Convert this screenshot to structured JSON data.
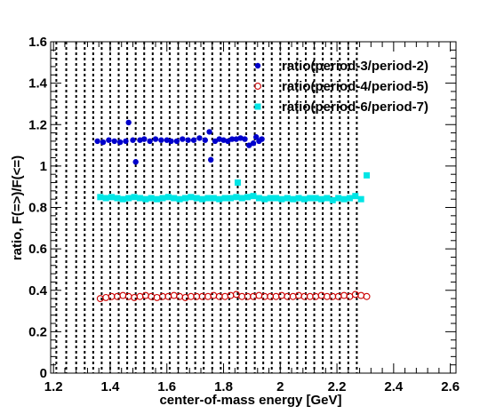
{
  "chart_data": {
    "type": "scatter",
    "title": "",
    "xlabel": "center-of-mass energy [GeV]",
    "ylabel": "ratio, F(=>)/F(<=)",
    "xlim": [
      1.19,
      2.62
    ],
    "ylim": [
      0,
      1.6
    ],
    "xticks": [
      "1.2",
      "1.4",
      "1.6",
      "1.8",
      "2",
      "2.2",
      "2.4",
      "2.6"
    ],
    "yticks": [
      "0",
      "0.2",
      "0.4",
      "0.6",
      "0.8",
      "1",
      "1.2",
      "1.4",
      "1.6"
    ],
    "grid": false,
    "legend_position": "top-right",
    "vertical_lines_x": [
      1.21,
      1.245,
      1.28,
      1.31,
      1.34,
      1.37,
      1.4,
      1.43,
      1.46,
      1.49,
      1.52,
      1.55,
      1.58,
      1.61,
      1.64,
      1.67,
      1.7,
      1.73,
      1.76,
      1.79,
      1.82,
      1.85,
      1.88,
      1.91,
      1.94,
      1.97,
      2.0,
      2.03,
      2.06,
      2.09,
      2.12,
      2.15,
      2.18,
      2.21,
      2.24,
      2.27
    ],
    "series": [
      {
        "name": "ratio(period-3/period-2)",
        "color": "#0000cc",
        "marker": "filled-circle",
        "x": [
          1.355,
          1.375,
          1.395,
          1.415,
          1.435,
          1.455,
          1.465,
          1.48,
          1.49,
          1.505,
          1.52,
          1.54,
          1.56,
          1.58,
          1.6,
          1.615,
          1.635,
          1.655,
          1.675,
          1.695,
          1.715,
          1.735,
          1.75,
          1.755,
          1.77,
          1.785,
          1.8,
          1.815,
          1.83,
          1.845,
          1.86,
          1.875,
          1.89,
          1.905,
          1.915,
          1.925,
          1.935
        ],
        "y": [
          1.12,
          1.115,
          1.125,
          1.12,
          1.115,
          1.12,
          1.21,
          1.125,
          1.02,
          1.125,
          1.13,
          1.12,
          1.13,
          1.125,
          1.125,
          1.12,
          1.12,
          1.13,
          1.125,
          1.125,
          1.135,
          1.125,
          1.165,
          1.03,
          1.12,
          1.13,
          1.125,
          1.12,
          1.13,
          1.13,
          1.135,
          1.13,
          1.1,
          1.11,
          1.14,
          1.12,
          1.13
        ]
      },
      {
        "name": "ratio(period-4/period-5)",
        "color": "#cc0000",
        "marker": "open-circle",
        "x": [
          1.365,
          1.385,
          1.405,
          1.425,
          1.445,
          1.465,
          1.485,
          1.505,
          1.525,
          1.545,
          1.565,
          1.585,
          1.605,
          1.625,
          1.645,
          1.665,
          1.685,
          1.705,
          1.725,
          1.745,
          1.765,
          1.785,
          1.805,
          1.825,
          1.845,
          1.865,
          1.885,
          1.905,
          1.925,
          1.945,
          1.965,
          1.985,
          2.005,
          2.025,
          2.045,
          2.065,
          2.085,
          2.105,
          2.125,
          2.145,
          2.165,
          2.185,
          2.205,
          2.225,
          2.245,
          2.265,
          2.285,
          2.305
        ],
        "y": [
          0.36,
          0.365,
          0.37,
          0.37,
          0.375,
          0.37,
          0.365,
          0.37,
          0.375,
          0.37,
          0.365,
          0.37,
          0.37,
          0.375,
          0.37,
          0.365,
          0.37,
          0.37,
          0.37,
          0.37,
          0.375,
          0.37,
          0.37,
          0.375,
          0.38,
          0.37,
          0.37,
          0.37,
          0.375,
          0.37,
          0.37,
          0.37,
          0.375,
          0.37,
          0.37,
          0.375,
          0.37,
          0.37,
          0.37,
          0.375,
          0.37,
          0.37,
          0.37,
          0.375,
          0.37,
          0.38,
          0.375,
          0.37
        ]
      },
      {
        "name": "ratio(period-6/period-7)",
        "color": "#00e5e5",
        "marker": "filled-square",
        "x": [
          1.365,
          1.385,
          1.405,
          1.425,
          1.445,
          1.465,
          1.485,
          1.505,
          1.525,
          1.545,
          1.565,
          1.585,
          1.605,
          1.625,
          1.645,
          1.665,
          1.685,
          1.705,
          1.725,
          1.745,
          1.765,
          1.785,
          1.805,
          1.825,
          1.845,
          1.85,
          1.865,
          1.885,
          1.905,
          1.925,
          1.945,
          1.965,
          1.985,
          2.005,
          2.025,
          2.045,
          2.065,
          2.085,
          2.105,
          2.125,
          2.145,
          2.165,
          2.185,
          2.205,
          2.225,
          2.245,
          2.265,
          2.285,
          2.305
        ],
        "y": [
          0.85,
          0.845,
          0.85,
          0.845,
          0.84,
          0.845,
          0.85,
          0.845,
          0.84,
          0.845,
          0.84,
          0.845,
          0.85,
          0.845,
          0.84,
          0.845,
          0.85,
          0.845,
          0.84,
          0.845,
          0.845,
          0.84,
          0.845,
          0.845,
          0.85,
          0.92,
          0.845,
          0.85,
          0.855,
          0.845,
          0.84,
          0.845,
          0.845,
          0.84,
          0.845,
          0.84,
          0.845,
          0.84,
          0.845,
          0.845,
          0.84,
          0.845,
          0.835,
          0.845,
          0.84,
          0.845,
          0.855,
          0.84,
          0.955
        ]
      }
    ]
  }
}
